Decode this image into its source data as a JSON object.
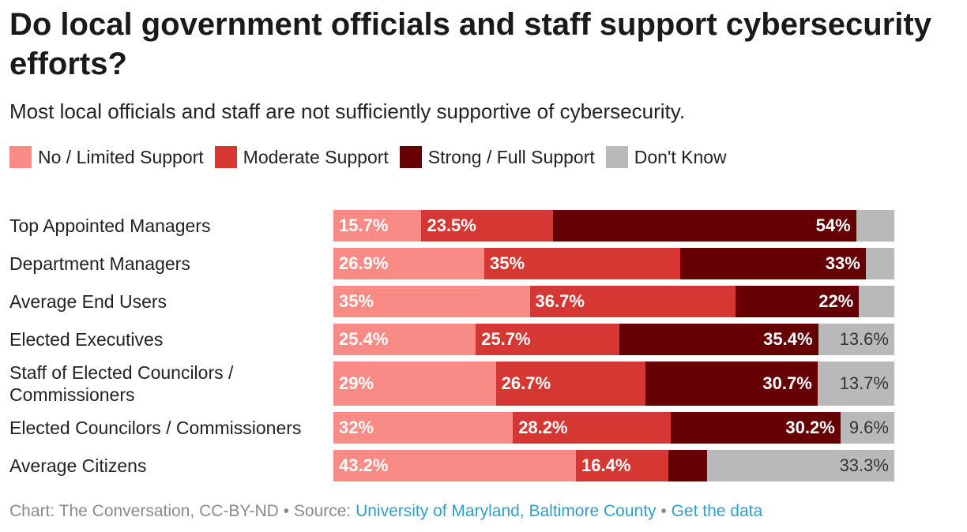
{
  "title": "Do local government officials and staff support cybersecurity efforts?",
  "subtitle": "Most local officials and staff are not sufficiently supportive of cybersecurity.",
  "colors": {
    "no_limited": "#f98b86",
    "moderate": "#d63733",
    "strong": "#650005",
    "dont_know": "#b9b9b9"
  },
  "chart_data": {
    "type": "bar",
    "orientation": "horizontal",
    "stacked": true,
    "legend_position": "top-left",
    "categories": [
      "Top Appointed Managers",
      "Department Managers",
      "Average End Users",
      "Elected Executives",
      "Staff of Elected Councilors / Commissioners",
      "Elected Councilors / Commissioners",
      "Average Citizens"
    ],
    "series": [
      {
        "name": "No / Limited Support",
        "color": "#f98b86",
        "values": [
          15.7,
          26.9,
          35,
          25.4,
          29,
          32,
          43.2
        ],
        "labels": [
          "15.7%",
          "26.9%",
          "35%",
          "25.4%",
          "29%",
          "32%",
          "43.2%"
        ]
      },
      {
        "name": "Moderate Support",
        "color": "#d63733",
        "values": [
          23.5,
          35,
          36.7,
          25.7,
          26.7,
          28.2,
          16.4
        ],
        "labels": [
          "23.5%",
          "35%",
          "36.7%",
          "25.7%",
          "26.7%",
          "28.2%",
          "16.4%"
        ]
      },
      {
        "name": "Strong / Full Support",
        "color": "#650005",
        "values": [
          54,
          33,
          22,
          35.4,
          30.7,
          30.2,
          7
        ],
        "labels": [
          "54%",
          "33%",
          "22%",
          "35.4%",
          "30.7%",
          "30.2%",
          ""
        ]
      },
      {
        "name": "Don't Know",
        "color": "#b9b9b9",
        "values": [
          6.8,
          5.1,
          6.3,
          13.6,
          13.7,
          9.6,
          33.3
        ],
        "labels": [
          "",
          "",
          "",
          "13.6%",
          "13.7%",
          "9.6%",
          "33.3%"
        ]
      }
    ]
  },
  "footer": {
    "credit": "Chart: The Conversation, CC-BY-ND",
    "separator": " • ",
    "source_prefix": "Source: ",
    "source_link": "University of Maryland, Baltimore County",
    "data_link": "Get the data"
  }
}
